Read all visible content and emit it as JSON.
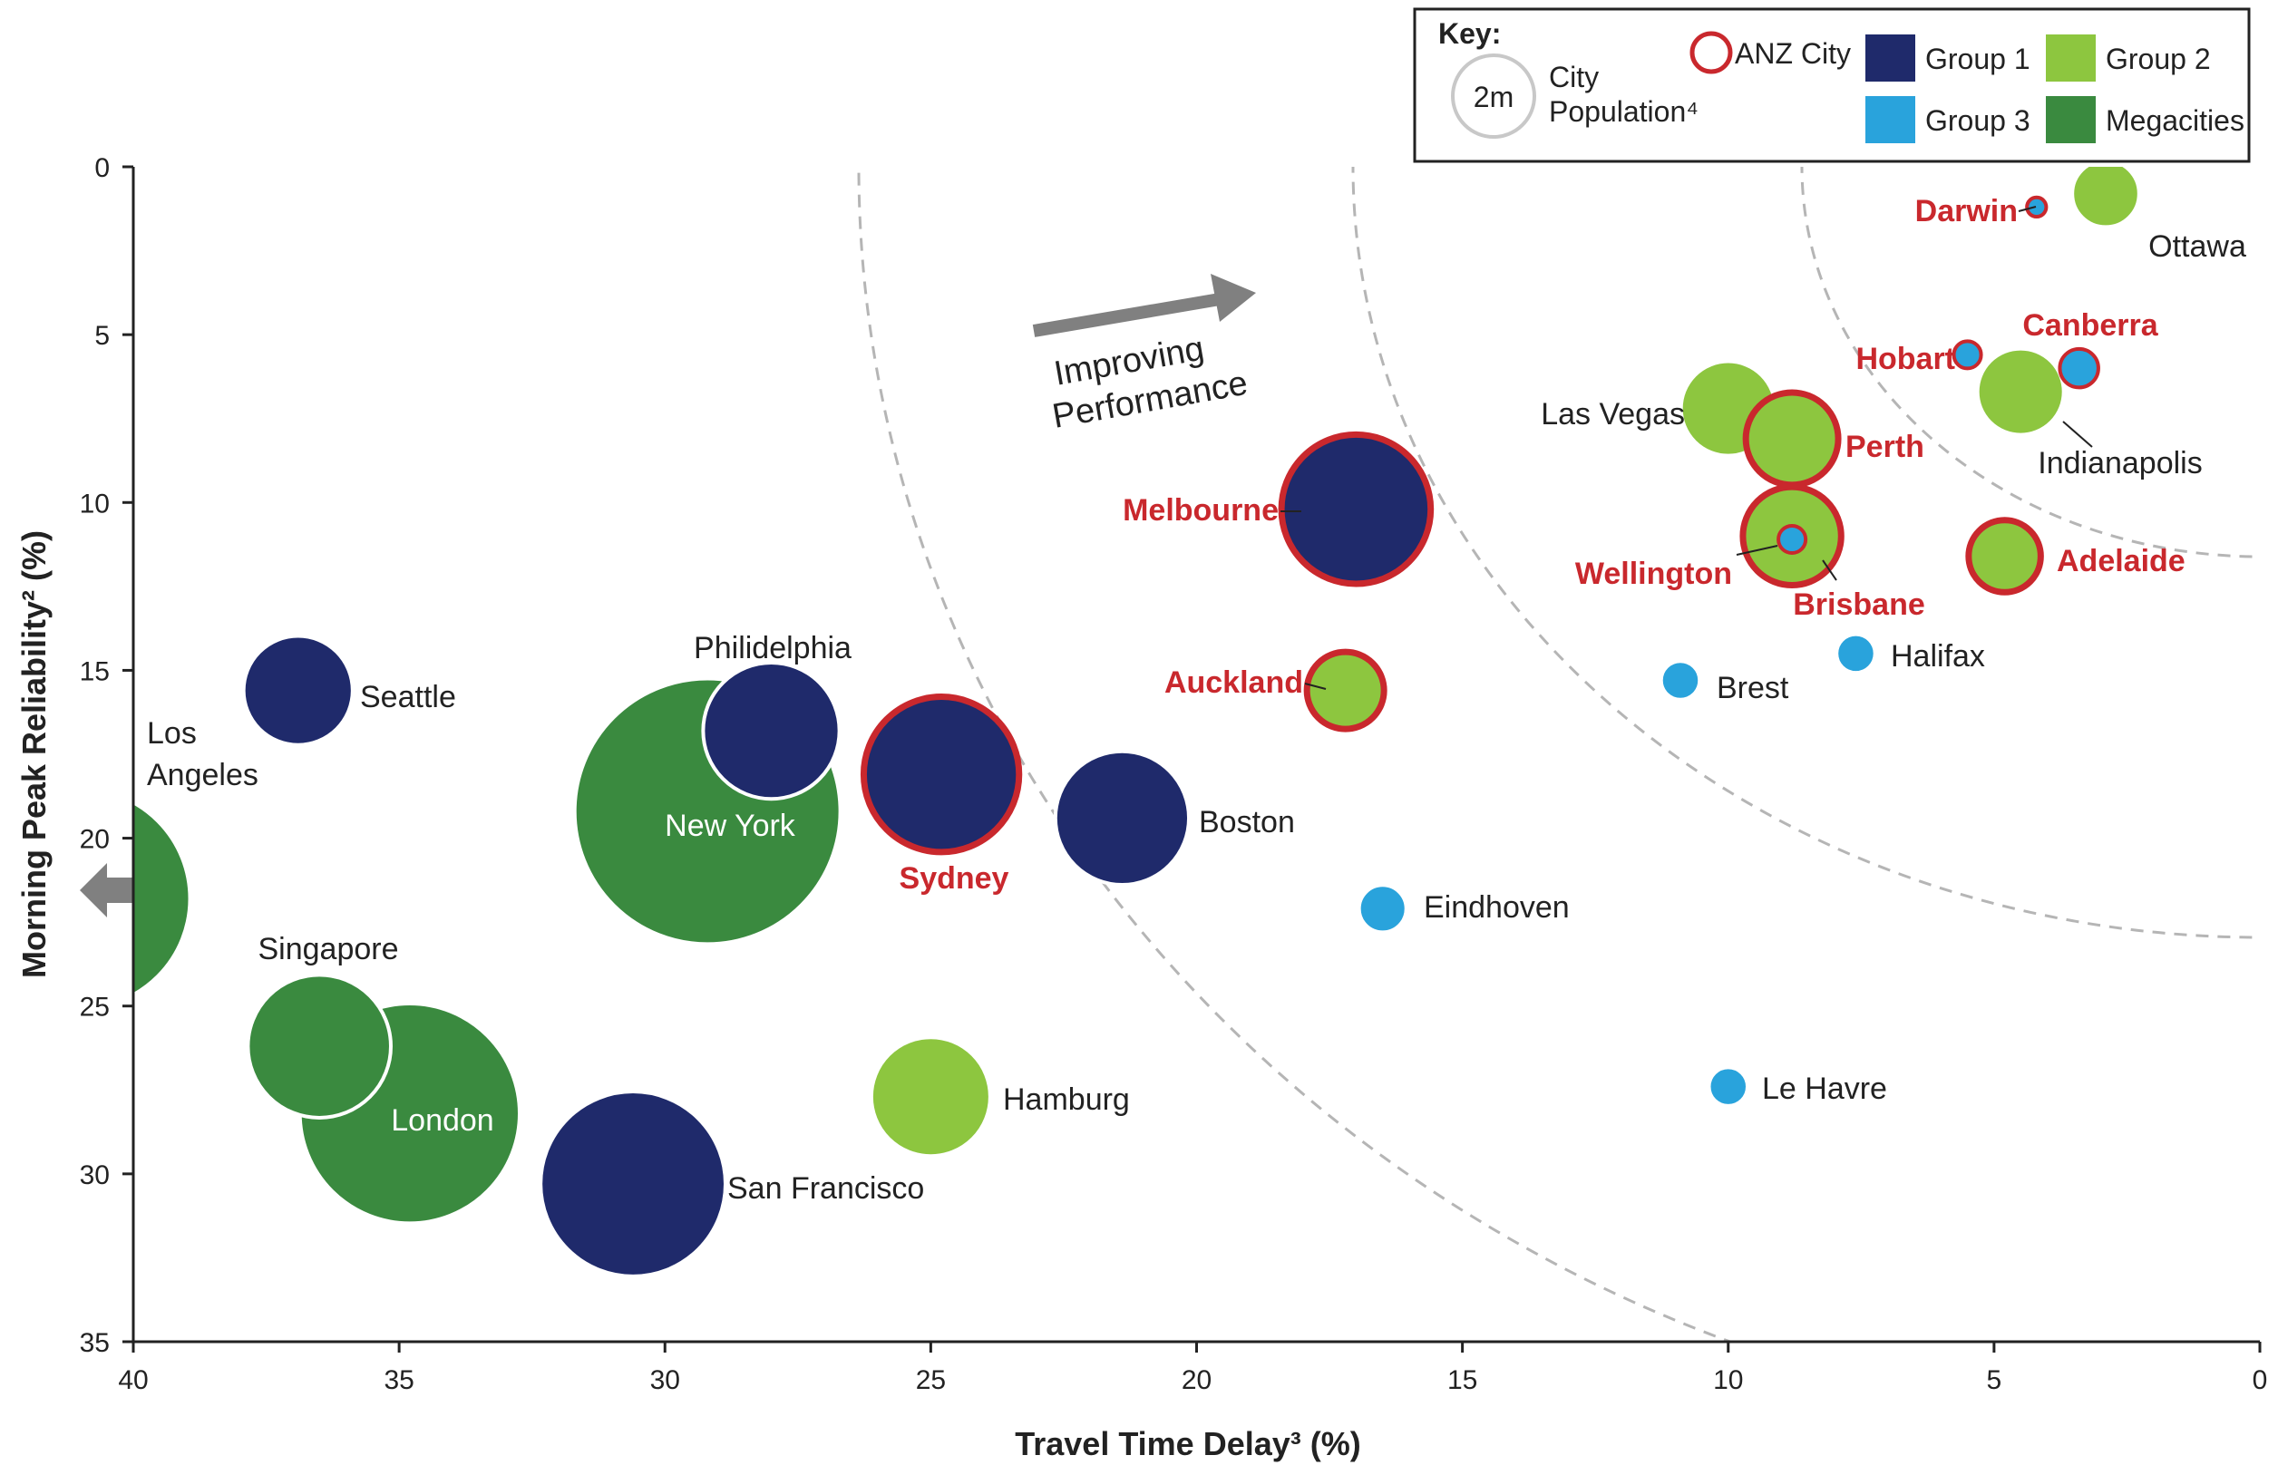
{
  "chart_data": {
    "type": "scatter",
    "xlabel": "Travel Time Delay³ (%)",
    "ylabel": "Morning Peak Reliability² (%)",
    "xlim": [
      40,
      0
    ],
    "ylim": [
      0,
      35
    ],
    "x_reversed": true,
    "y_reversed": true,
    "x_ticks": [
      40,
      35,
      30,
      25,
      20,
      15,
      10,
      5,
      0
    ],
    "y_ticks": [
      0,
      5,
      10,
      15,
      20,
      25,
      30,
      35
    ],
    "grid": false,
    "legend_position": "top-right",
    "annotation": "Improving Performance",
    "key": {
      "title": "Key:",
      "size_sample": "2m",
      "size_label_line1": "City",
      "size_label_line2": "Population⁴",
      "anz_label": "ANZ City",
      "groups": [
        {
          "name": "Group 1",
          "color": "#1f2a6b"
        },
        {
          "name": "Group 2",
          "color": "#8dc63f"
        },
        {
          "name": "Group 3",
          "color": "#29a3dc"
        },
        {
          "name": "Megacities",
          "color": "#3a8a3f"
        }
      ]
    },
    "colors": {
      "Group 1": "#1f2a6b",
      "Group 2": "#8dc63f",
      "Group 3": "#29a3dc",
      "Megacities": "#3a8a3f",
      "anz_ring": "#c9282d"
    },
    "points": [
      {
        "name": "Los Angeles",
        "x": 41.0,
        "y": 21.8,
        "population_m": 13.0,
        "group": "Megacities",
        "anz": false
      },
      {
        "name": "New York",
        "x": 29.2,
        "y": 19.2,
        "population_m": 19.0,
        "group": "Megacities",
        "anz": false
      },
      {
        "name": "London",
        "x": 34.8,
        "y": 28.2,
        "population_m": 13.0,
        "group": "Megacities",
        "anz": false
      },
      {
        "name": "Singapore",
        "x": 36.5,
        "y": 26.2,
        "population_m": 5.5,
        "group": "Megacities",
        "anz": false
      },
      {
        "name": "Seattle",
        "x": 36.9,
        "y": 15.6,
        "population_m": 3.2,
        "group": "Group 1",
        "anz": false
      },
      {
        "name": "Philidelphia",
        "x": 28.0,
        "y": 16.8,
        "population_m": 5.0,
        "group": "Group 1",
        "anz": false
      },
      {
        "name": "Sydney",
        "x": 24.8,
        "y": 18.1,
        "population_m": 6.5,
        "group": "Group 1",
        "anz": true
      },
      {
        "name": "Boston",
        "x": 21.4,
        "y": 19.4,
        "population_m": 4.8,
        "group": "Group 1",
        "anz": false
      },
      {
        "name": "San Francisco",
        "x": 30.6,
        "y": 30.3,
        "population_m": 9.2,
        "group": "Group 1",
        "anz": false
      },
      {
        "name": "Melbourne",
        "x": 17.0,
        "y": 10.2,
        "population_m": 6.0,
        "group": "Group 1",
        "anz": true
      },
      {
        "name": "Hamburg",
        "x": 25.0,
        "y": 27.7,
        "population_m": 3.8,
        "group": "Group 2",
        "anz": false
      },
      {
        "name": "Auckland",
        "x": 17.2,
        "y": 15.6,
        "population_m": 1.6,
        "group": "Group 2",
        "anz": true
      },
      {
        "name": "Las Vegas",
        "x": 10.0,
        "y": 7.2,
        "population_m": 2.4,
        "group": "Group 2",
        "anz": false
      },
      {
        "name": "Perth",
        "x": 8.8,
        "y": 8.1,
        "population_m": 2.3,
        "group": "Group 2",
        "anz": true
      },
      {
        "name": "Brisbane",
        "x": 8.8,
        "y": 11.0,
        "population_m": 2.6,
        "group": "Group 2",
        "anz": true
      },
      {
        "name": "Wellington",
        "x": 8.8,
        "y": 11.1,
        "population_m": 0.2,
        "group": "Group 3",
        "anz": true
      },
      {
        "name": "Adelaide",
        "x": 4.8,
        "y": 11.6,
        "population_m": 1.4,
        "group": "Group 2",
        "anz": true
      },
      {
        "name": "Indianapolis",
        "x": 4.5,
        "y": 6.7,
        "population_m": 2.0,
        "group": "Group 2",
        "anz": false
      },
      {
        "name": "Canberra",
        "x": 3.4,
        "y": 6.0,
        "population_m": 0.4,
        "group": "Group 3",
        "anz": true
      },
      {
        "name": "Hobart",
        "x": 5.5,
        "y": 5.6,
        "population_m": 0.2,
        "group": "Group 3",
        "anz": true
      },
      {
        "name": "Darwin",
        "x": 4.2,
        "y": 1.2,
        "population_m": 0.1,
        "group": "Group 3",
        "anz": true
      },
      {
        "name": "Ottawa",
        "x": 2.9,
        "y": 0.8,
        "population_m": 1.2,
        "group": "Group 2",
        "anz": false
      },
      {
        "name": "Halifax",
        "x": 7.6,
        "y": 14.5,
        "population_m": 0.4,
        "group": "Group 3",
        "anz": false
      },
      {
        "name": "Brest",
        "x": 10.9,
        "y": 15.3,
        "population_m": 0.4,
        "group": "Group 3",
        "anz": false
      },
      {
        "name": "Eindhoven",
        "x": 16.5,
        "y": 22.1,
        "population_m": 0.6,
        "group": "Group 3",
        "anz": false
      },
      {
        "name": "Le Havre",
        "x": 10.0,
        "y": 27.4,
        "population_m": 0.4,
        "group": "Group 3",
        "anz": false
      }
    ]
  }
}
